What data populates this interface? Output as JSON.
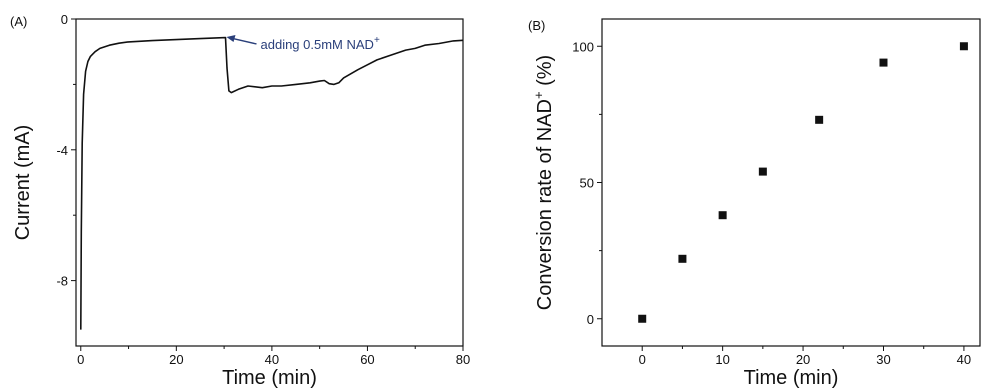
{
  "chart_data": [
    {
      "type": "line",
      "panel_label": "(A)",
      "xlabel": "Time (min)",
      "ylabel": "Current (mA)",
      "xlim": [
        -1,
        80
      ],
      "ylim": [
        -10,
        0
      ],
      "xticks": [
        0,
        20,
        40,
        60,
        80
      ],
      "yticks": [
        0,
        -4,
        -8
      ],
      "grid": false,
      "annotation": {
        "text": "adding 0.5mM NAD",
        "superscript": "+",
        "x": 30.5,
        "y": -0.55
      },
      "series": [
        {
          "x": [
            0,
            0.1,
            0.3,
            0.6,
            1,
            1.5,
            2,
            3,
            4,
            6,
            8,
            10,
            15,
            20,
            25,
            30.3,
            30.6,
            31,
            31.5,
            33,
            35,
            38,
            40,
            42,
            45,
            48,
            50,
            51,
            52,
            53,
            54,
            55,
            58,
            60,
            62,
            65,
            68,
            70,
            72,
            75,
            78,
            80
          ],
          "values": [
            -9.5,
            -6.5,
            -3.8,
            -2.3,
            -1.6,
            -1.3,
            -1.15,
            -1.0,
            -0.9,
            -0.8,
            -0.74,
            -0.7,
            -0.66,
            -0.63,
            -0.6,
            -0.57,
            -1.5,
            -2.2,
            -2.25,
            -2.15,
            -2.05,
            -2.1,
            -2.05,
            -2.05,
            -2.0,
            -1.95,
            -1.9,
            -1.88,
            -1.98,
            -2.0,
            -1.95,
            -1.8,
            -1.55,
            -1.4,
            -1.25,
            -1.1,
            -0.95,
            -0.9,
            -0.8,
            -0.75,
            -0.67,
            -0.65
          ]
        }
      ]
    },
    {
      "type": "scatter",
      "panel_label": "(B)",
      "xlabel": "Time (min)",
      "ylabel": "Conversion rate of NAD",
      "ylabel_sup": "+",
      "ylabel_unit": " (%)",
      "xlim": [
        -5,
        42
      ],
      "ylim": [
        -10,
        110
      ],
      "xticks": [
        0,
        10,
        20,
        30,
        40
      ],
      "yticks": [
        0,
        50,
        100
      ],
      "grid": false,
      "series": [
        {
          "x": [
            0,
            5,
            10,
            15,
            22,
            30,
            40
          ],
          "values": [
            0,
            22,
            38,
            54,
            73,
            94,
            100
          ]
        }
      ]
    }
  ]
}
